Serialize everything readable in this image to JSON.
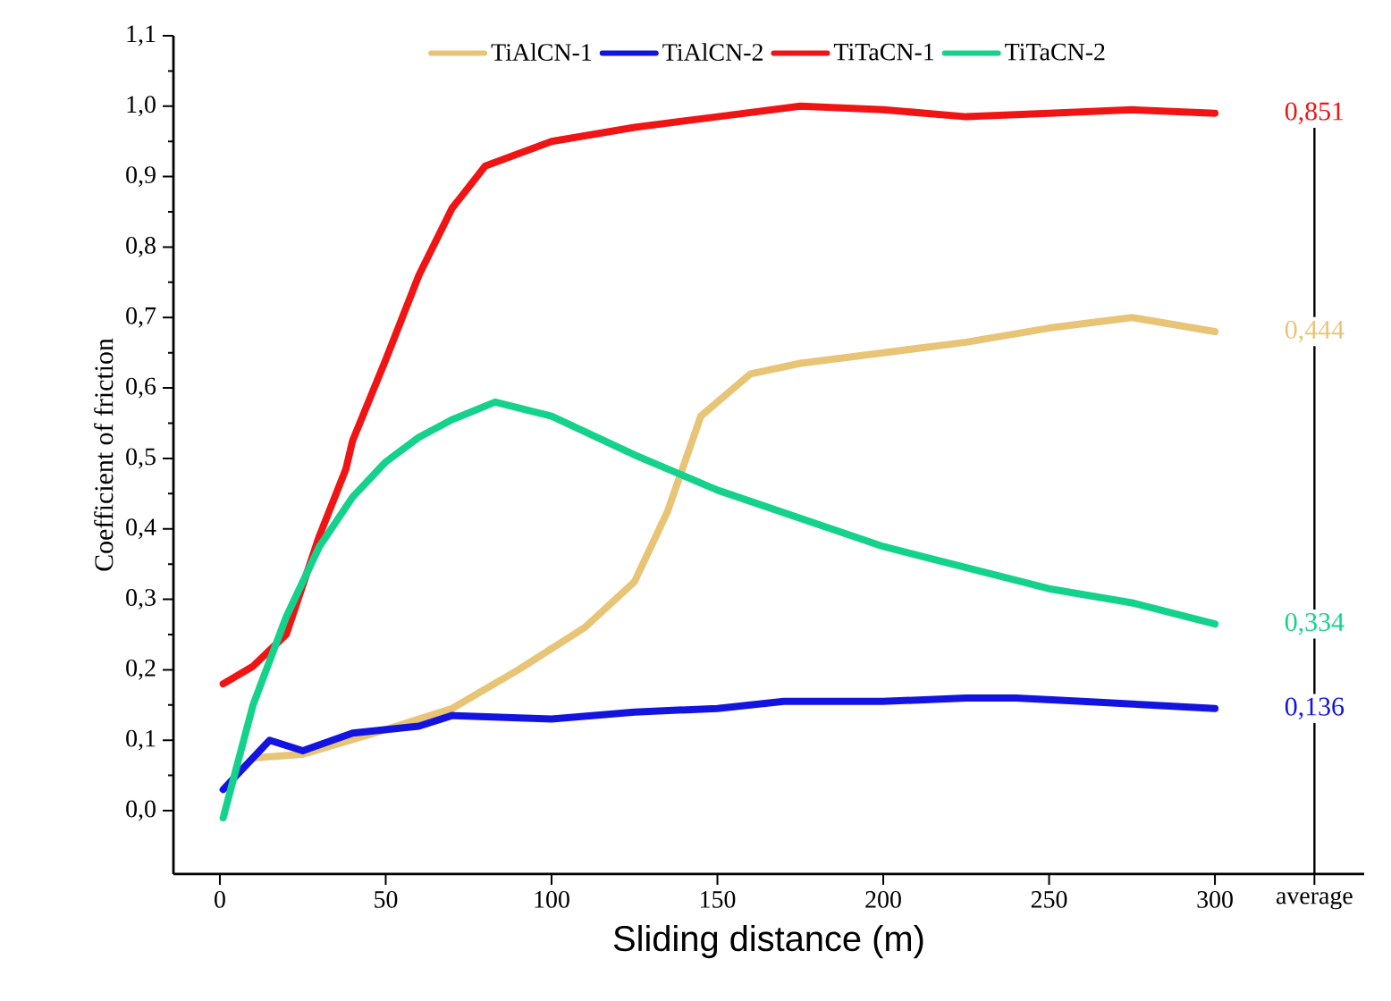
{
  "chart_data": {
    "type": "line",
    "xlabel": "Sliding distance (m)",
    "ylabel": "Coefficient of friction",
    "xlim": [
      -14,
      345
    ],
    "ylim": [
      -0.09,
      1.1
    ],
    "xticks": [
      0,
      50,
      100,
      150,
      200,
      250,
      300,
      {
        "value": 330,
        "label": "average"
      }
    ],
    "yticks": [
      {
        "value": 0.0,
        "label": "0,0"
      },
      {
        "value": 0.1,
        "label": "0,1"
      },
      {
        "value": 0.2,
        "label": "0,2"
      },
      {
        "value": 0.3,
        "label": "0,3"
      },
      {
        "value": 0.4,
        "label": "0,4"
      },
      {
        "value": 0.5,
        "label": "0,5"
      },
      {
        "value": 0.6,
        "label": "0,6"
      },
      {
        "value": 0.7,
        "label": "0,7"
      },
      {
        "value": 0.8,
        "label": "0,8"
      },
      {
        "value": 0.9,
        "label": "0,9"
      },
      {
        "value": 1.0,
        "label": "1,0"
      },
      {
        "value": 1.1,
        "label": "1,1"
      }
    ],
    "legend": "top",
    "grid": false,
    "ref_lines": [
      {
        "axis": "x",
        "value": 330,
        "color": "#000000"
      }
    ],
    "annotations": [
      "0,444",
      "0,136",
      "0,851",
      "0,334"
    ],
    "series": [
      {
        "name": "TiAlCN-1",
        "color": "#e8c476",
        "x": [
          10,
          25,
          50,
          70,
          90,
          110,
          125,
          135,
          145,
          160,
          175,
          200,
          225,
          250,
          275,
          300
        ],
        "values": [
          0.075,
          0.08,
          0.115,
          0.145,
          0.2,
          0.26,
          0.325,
          0.425,
          0.56,
          0.62,
          0.635,
          0.65,
          0.665,
          0.685,
          0.7,
          0.68
        ]
      },
      {
        "name": "TiAlCN-2",
        "color": "#1414e0",
        "x": [
          1,
          5,
          15,
          25,
          40,
          60,
          70,
          100,
          125,
          150,
          170,
          200,
          225,
          240,
          260,
          280,
          300
        ],
        "values": [
          0.03,
          0.05,
          0.1,
          0.085,
          0.11,
          0.12,
          0.135,
          0.13,
          0.14,
          0.145,
          0.155,
          0.155,
          0.16,
          0.16,
          0.155,
          0.15,
          0.145
        ]
      },
      {
        "name": "TiTaCN-1",
        "color": "#f01414",
        "x": [
          1,
          10,
          20,
          30,
          38,
          40,
          50,
          60,
          70,
          80,
          100,
          125,
          150,
          175,
          200,
          225,
          250,
          275,
          300
        ],
        "values": [
          0.18,
          0.205,
          0.25,
          0.39,
          0.485,
          0.525,
          0.64,
          0.76,
          0.855,
          0.915,
          0.95,
          0.97,
          0.985,
          1.0,
          0.995,
          0.985,
          0.99,
          0.995,
          0.99
        ]
      },
      {
        "name": "TiTaCN-2",
        "color": "#14d28c",
        "x": [
          1,
          10,
          20,
          30,
          40,
          50,
          60,
          70,
          83,
          100,
          125,
          150,
          175,
          200,
          225,
          250,
          275,
          300
        ],
        "values": [
          -0.01,
          0.15,
          0.275,
          0.375,
          0.445,
          0.495,
          0.53,
          0.555,
          0.58,
          0.56,
          0.505,
          0.455,
          0.415,
          0.375,
          0.345,
          0.315,
          0.295,
          0.265
        ]
      }
    ]
  }
}
